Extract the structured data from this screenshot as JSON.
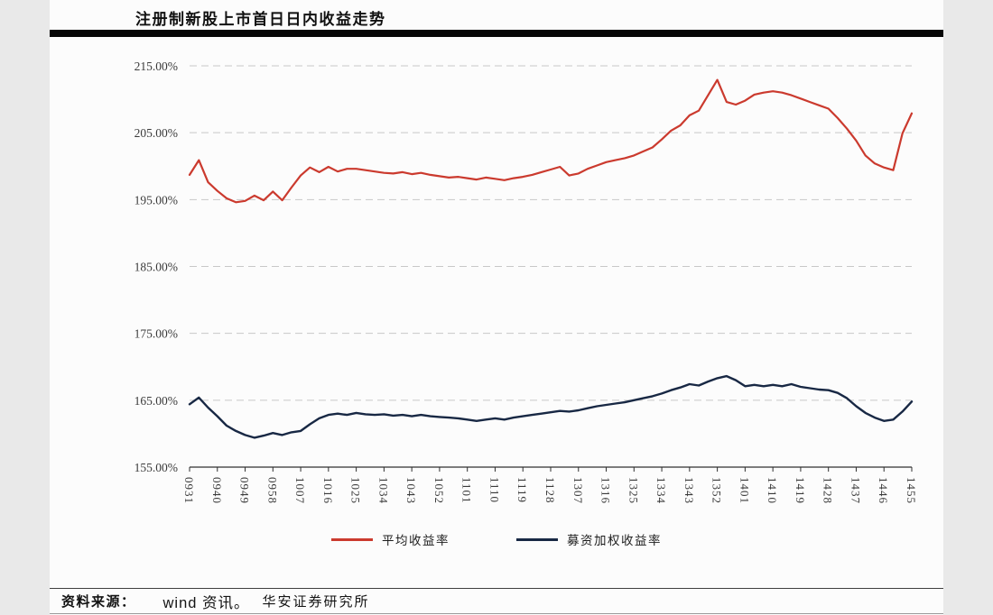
{
  "report": {
    "title": "注册制新股上市首日日内收益走势",
    "footer": {
      "label": "资料来源：",
      "source_wind": "wind 资讯。",
      "source_org": "华安证券研究所"
    }
  },
  "chart_data": {
    "type": "line",
    "title": "注册制新股上市首日日内收益走势",
    "xlabel": "",
    "ylabel": "",
    "grid": "dashed-horizontal",
    "legend_position": "bottom",
    "y_axis": {
      "min": 155,
      "max": 215,
      "step": 10,
      "unit": "%"
    },
    "y_tick_labels": [
      "155.00%",
      "165.00%",
      "175.00%",
      "185.00%",
      "195.00%",
      "205.00%",
      "215.00%"
    ],
    "x_tick_labels": [
      "0931",
      "0940",
      "0949",
      "0958",
      "1007",
      "1016",
      "1025",
      "1034",
      "1043",
      "1052",
      "1101",
      "1110",
      "1119",
      "1128",
      "1307",
      "1316",
      "1325",
      "1334",
      "1343",
      "1352",
      "1401",
      "1410",
      "1419",
      "1428",
      "1437",
      "1446",
      "1455"
    ],
    "points_per_tick": 3,
    "series": [
      {
        "key": "average-return",
        "name": "平均收益率",
        "color": "#cb3a2e",
        "values": [
          198.7,
          200.9,
          197.6,
          196.3,
          195.2,
          194.6,
          194.8,
          195.6,
          194.9,
          196.2,
          194.9,
          196.8,
          198.6,
          199.8,
          199.1,
          199.9,
          199.2,
          199.6,
          199.6,
          199.4,
          199.2,
          199.0,
          198.9,
          199.1,
          198.8,
          199.0,
          198.7,
          198.5,
          198.3,
          198.4,
          198.2,
          198.0,
          198.3,
          198.1,
          197.9,
          198.2,
          198.4,
          198.7,
          199.1,
          199.5,
          199.9,
          198.6,
          198.9,
          199.6,
          200.1,
          200.6,
          200.9,
          201.2,
          201.6,
          202.2,
          202.8,
          204.0,
          205.3,
          206.1,
          207.6,
          208.3,
          210.6,
          212.9,
          209.6,
          209.2,
          209.8,
          210.7,
          211.0,
          211.2,
          211.0,
          210.6,
          210.1,
          209.6,
          209.1,
          208.6,
          207.2,
          205.6,
          203.8,
          201.6,
          200.4,
          199.8,
          199.4,
          204.9,
          207.9
        ]
      },
      {
        "key": "weighted-return",
        "name": "募资加权收益率",
        "color": "#182844",
        "values": [
          164.4,
          165.4,
          163.9,
          162.6,
          161.2,
          160.4,
          159.8,
          159.4,
          159.7,
          160.1,
          159.8,
          160.2,
          160.4,
          161.4,
          162.3,
          162.8,
          163.0,
          162.8,
          163.1,
          162.9,
          162.8,
          162.9,
          162.7,
          162.8,
          162.6,
          162.8,
          162.6,
          162.5,
          162.4,
          162.3,
          162.1,
          161.9,
          162.1,
          162.3,
          162.1,
          162.4,
          162.6,
          162.8,
          163.0,
          163.2,
          163.4,
          163.3,
          163.5,
          163.8,
          164.1,
          164.3,
          164.5,
          164.7,
          165.0,
          165.3,
          165.6,
          166.0,
          166.5,
          166.9,
          167.4,
          167.2,
          167.8,
          168.3,
          168.6,
          168.0,
          167.1,
          167.3,
          167.1,
          167.3,
          167.1,
          167.4,
          167.0,
          166.8,
          166.6,
          166.5,
          166.1,
          165.3,
          164.1,
          163.1,
          162.4,
          161.9,
          162.1,
          163.3,
          164.8
        ]
      }
    ]
  }
}
